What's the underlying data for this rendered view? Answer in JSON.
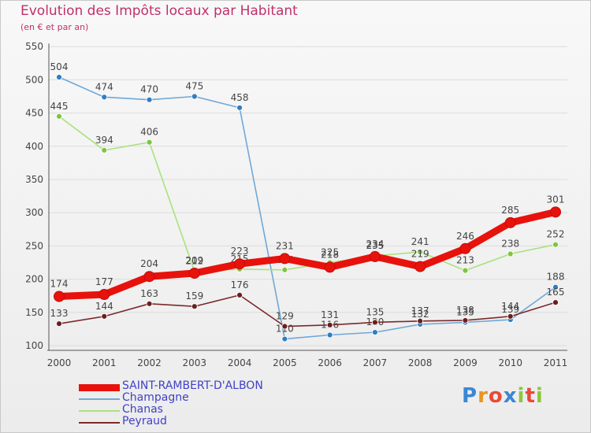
{
  "title": "Evolution des Impôts locaux par Habitant",
  "subtitle": "(en € et par an)",
  "brand": {
    "text": "Proxiti",
    "letter_colors": [
      "#3a87d4",
      "#e8941f",
      "#e84a3a",
      "#3a87d4",
      "#8cc63f",
      "#e84a3a",
      "#8cc63f"
    ]
  },
  "chart_data": {
    "type": "line",
    "title": "Evolution des Impôts locaux par Habitant",
    "subtitle": "(en € et par an)",
    "x": [
      "2000",
      "2001",
      "2002",
      "2003",
      "2004",
      "2005",
      "2006",
      "2007",
      "2008",
      "2009",
      "2010",
      "2011"
    ],
    "ylim": [
      100,
      550
    ],
    "yticks": [
      "550",
      "500",
      "450",
      "400",
      "350",
      "300",
      "250",
      "200",
      "150",
      "100"
    ],
    "grid": true,
    "legend_position": "bottom-left",
    "series": [
      {
        "name": "SAINT-RAMBERT-D'ALBON",
        "color": "#e8120c",
        "marker_color": "#e8120c",
        "bold": true,
        "values": [
          174,
          177,
          204,
          209,
          223,
          231,
          218,
          234,
          219,
          246,
          285,
          301
        ],
        "labels": [
          "174",
          "177",
          "204",
          "209",
          "223",
          "231",
          "218",
          "234",
          "219",
          "246",
          "285",
          "301"
        ]
      },
      {
        "name": "Champagne",
        "color": "#6fa8d8",
        "marker_color": "#2f7ec4",
        "values": [
          504,
          474,
          470,
          475,
          458,
          110,
          116,
          120,
          132,
          135,
          139,
          188
        ],
        "labels": [
          "504",
          "474",
          "470",
          "475",
          "458",
          "110",
          "116",
          "120",
          "132",
          "135",
          "139",
          "188"
        ]
      },
      {
        "name": "Chanas",
        "color": "#a9e27c",
        "marker_color": "#7fc441",
        "values": [
          445,
          394,
          406,
          212,
          215,
          214,
          225,
          235,
          241,
          213,
          238,
          252
        ],
        "labels": [
          "445",
          "394",
          "406",
          "212",
          "215",
          "214",
          "225",
          "235",
          "241",
          "213",
          "238",
          "252"
        ]
      },
      {
        "name": "Peyraud",
        "color": "#7b2a2a",
        "marker_color": "#6a1f1f",
        "values": [
          133,
          144,
          163,
          159,
          176,
          129,
          131,
          135,
          137,
          138,
          144,
          165
        ],
        "labels": [
          "133",
          "144",
          "163",
          "159",
          "176",
          "129",
          "131",
          "135",
          "137",
          "138",
          "144",
          "165"
        ]
      }
    ]
  },
  "legend": [
    {
      "label": "SAINT-RAMBERT-D'ALBON"
    },
    {
      "label": "Champagne"
    },
    {
      "label": "Chanas"
    },
    {
      "label": "Peyraud"
    }
  ]
}
